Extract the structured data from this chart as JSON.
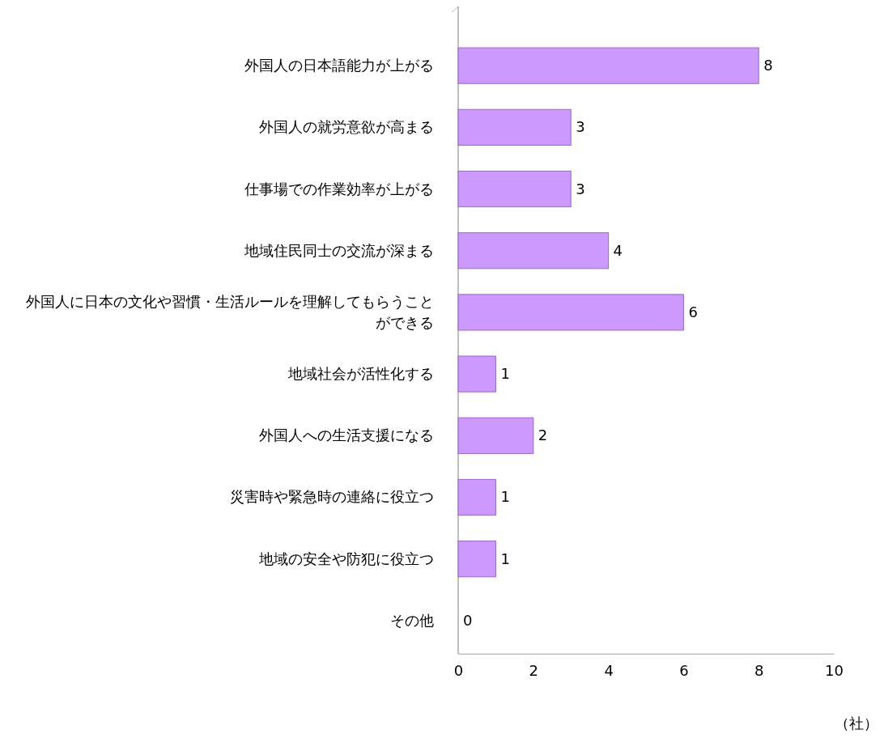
{
  "chart_data": {
    "type": "bar",
    "orientation": "horizontal",
    "categories": [
      "外国人の日本語能力が上がる",
      "外国人の就労意欲が高まる",
      "仕事場での作業効率が上がる",
      "地域住民同士の交流が深まる",
      "外国人に日本の文化や習慣・生活ルールを理解してもらうことができる",
      "地域社会が活性化する",
      "外国人への生活支援になる",
      "災害時や緊急時の連絡に役立つ",
      "地域の安全や防犯に役立つ",
      "その他"
    ],
    "values": [
      8,
      3,
      3,
      4,
      6,
      1,
      2,
      1,
      1,
      0
    ],
    "color": "#cc99ff",
    "xlim": [
      0,
      10
    ],
    "xticks": [
      0,
      2,
      4,
      6,
      8,
      10
    ],
    "xlabel": "（社）",
    "data_labels": true,
    "grid": false
  }
}
